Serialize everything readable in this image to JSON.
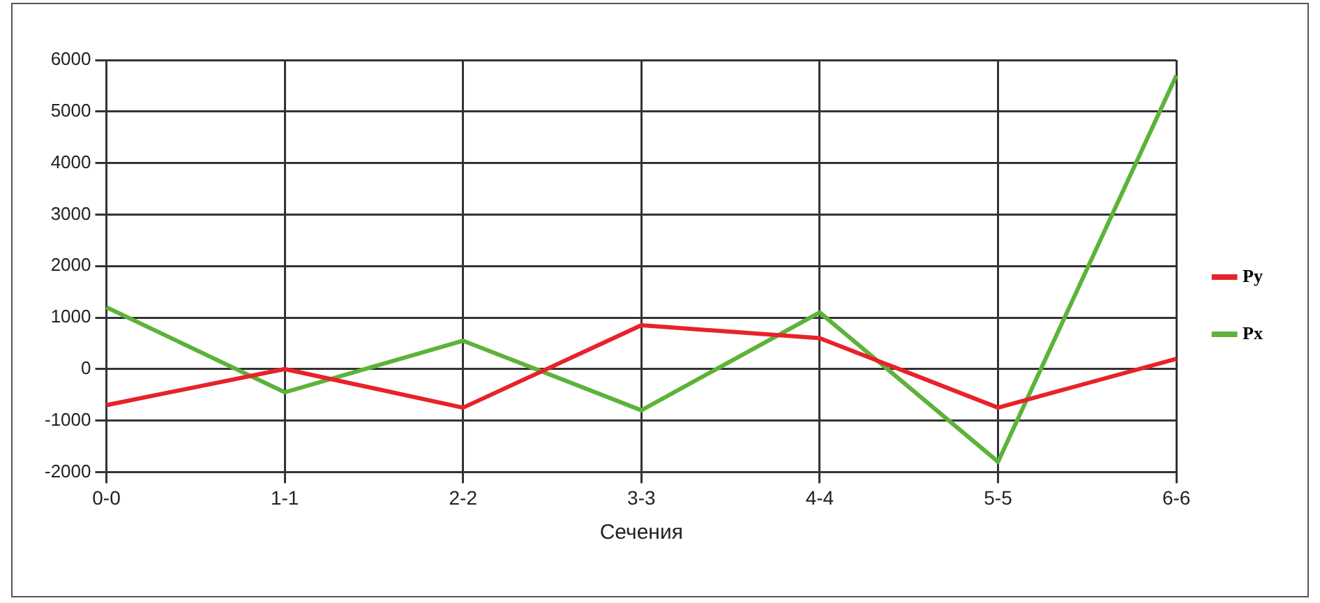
{
  "chart_data": {
    "type": "line",
    "xlabel": "Сечения",
    "categories": [
      "0-0",
      "1-1",
      "2-2",
      "3-3",
      "4-4",
      "5-5",
      "6-6"
    ],
    "series": [
      {
        "name": "Py",
        "color": "#e8222a",
        "values": [
          -700,
          0,
          -750,
          850,
          600,
          -750,
          200
        ]
      },
      {
        "name": "Px",
        "color": "#5cb338",
        "values": [
          1200,
          -450,
          550,
          -800,
          1100,
          -1800,
          5700
        ]
      }
    ],
    "ylim": [
      -2000,
      6000
    ],
    "yticks": [
      -2000,
      -1000,
      0,
      1000,
      2000,
      3000,
      4000,
      5000,
      6000
    ],
    "grid": true,
    "legend": "right",
    "marker": "none",
    "line_style": "solid"
  }
}
